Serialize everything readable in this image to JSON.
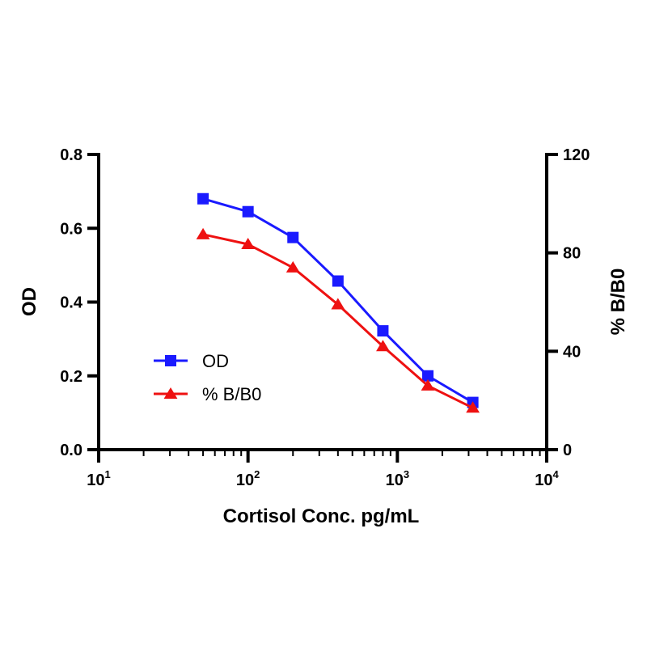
{
  "chart_data": {
    "type": "line",
    "xlabel": "Cortisol Conc. pg/mL",
    "ylabel": "OD",
    "y2label": "% B/B0",
    "x_scale": "log",
    "xlim": [
      10,
      10000
    ],
    "ylim": [
      0,
      0.8
    ],
    "y2lim": [
      0,
      120
    ],
    "x_ticks": [
      {
        "base": "10",
        "exp": "1"
      },
      {
        "base": "10",
        "exp": "2"
      },
      {
        "base": "10",
        "exp": "3"
      },
      {
        "base": "10",
        "exp": "4"
      }
    ],
    "y_ticks": [
      "0.0",
      "0.2",
      "0.4",
      "0.6",
      "0.8"
    ],
    "y2_ticks": [
      "0",
      "40",
      "80",
      "120"
    ],
    "grid": false,
    "legend_position": "lower-left",
    "series": [
      {
        "name": "OD",
        "axis": "left",
        "color": "#1a1aff",
        "marker": "square",
        "x": [
          50,
          100,
          200,
          400,
          800,
          1600,
          3200
        ],
        "y": [
          0.68,
          0.645,
          0.575,
          0.457,
          0.322,
          0.2,
          0.128
        ]
      },
      {
        "name": "% B/B0",
        "axis": "right",
        "color": "#ee1111",
        "marker": "triangle",
        "x": [
          50,
          100,
          200,
          400,
          800,
          1600,
          3200
        ],
        "y": [
          87.5,
          83.5,
          74.0,
          59.0,
          42.0,
          26.0,
          17.0
        ]
      }
    ]
  }
}
